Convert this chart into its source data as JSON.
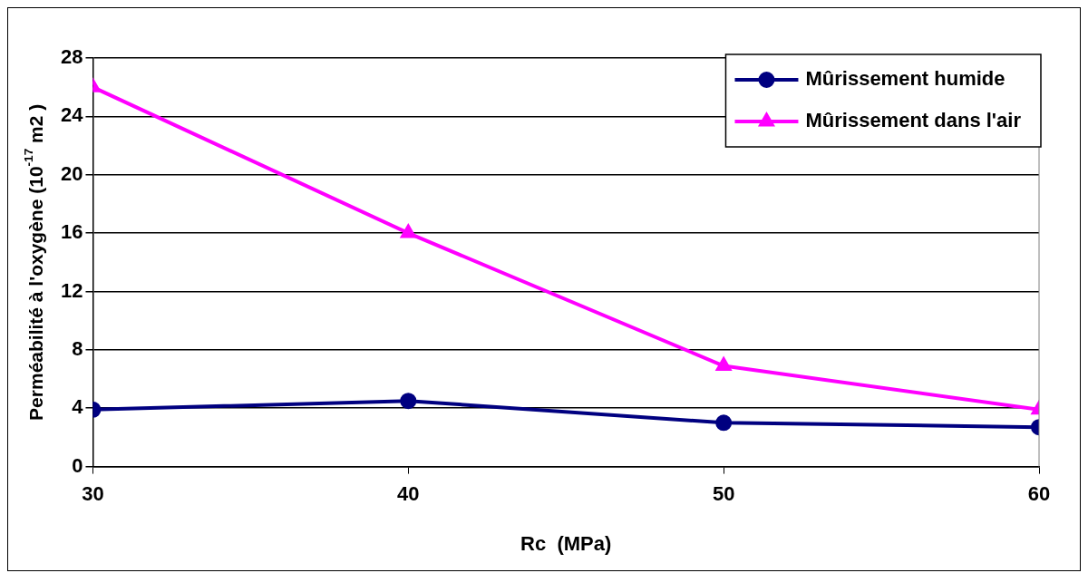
{
  "chart_data": {
    "type": "line",
    "xlabel": "Rc  (MPa)",
    "ylabel": "Perméabilité à l'oxygène (10$^{-17}$ m2 )",
    "x": [
      30,
      40,
      50,
      60
    ],
    "series": [
      {
        "name": "Mûrissement humide",
        "color": "#000080",
        "marker": "circle",
        "values": [
          3.9,
          4.5,
          3.0,
          2.7
        ]
      },
      {
        "name": "Mûrissement dans l'air",
        "color": "#ff00ff",
        "marker": "triangle",
        "values": [
          26,
          16,
          6.9,
          3.9
        ]
      }
    ],
    "xlim": [
      30,
      60
    ],
    "xticks": [
      30,
      40,
      50,
      60
    ],
    "ylim": [
      0,
      28
    ],
    "yticks": [
      0,
      4,
      8,
      12,
      16,
      20,
      24,
      28
    ],
    "grid": "y",
    "legend": "top right",
    "line_style": "solid"
  }
}
